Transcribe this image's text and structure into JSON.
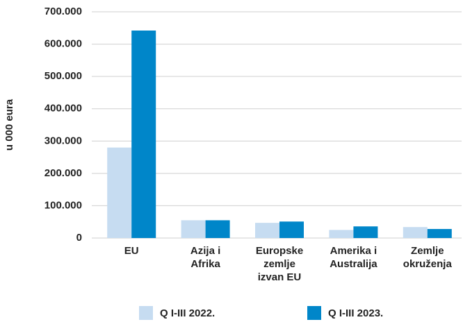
{
  "chart_data": {
    "type": "bar",
    "y_label": "u 000 eura",
    "categories": [
      "EU",
      "Azija i\nAfrika",
      "Europske\nzemlje\nizvan EU",
      "Amerika i\nAustralija",
      "Zemlje\nokruženja"
    ],
    "series": [
      {
        "name": "Q I-III 2022.",
        "color": "#c6dcf1",
        "values": [
          280000,
          55000,
          47000,
          25000,
          34000
        ]
      },
      {
        "name": "Q I-III 2023.",
        "color": "#0086c9",
        "values": [
          642000,
          55000,
          51000,
          36000,
          28000
        ]
      }
    ],
    "ylim": [
      0,
      700000
    ],
    "yticks": [
      0,
      {
        "value": 100000,
        "label": "100.000"
      },
      {
        "value": 200000,
        "label": "200.000"
      },
      {
        "value": 300000,
        "label": "300.000"
      },
      {
        "value": 400000,
        "label": "400.000"
      },
      {
        "value": 500000,
        "label": "500.000"
      },
      {
        "value": 600000,
        "label": "600.000"
      },
      {
        "value": 700000,
        "label": "700.000"
      }
    ],
    "grid": true
  }
}
